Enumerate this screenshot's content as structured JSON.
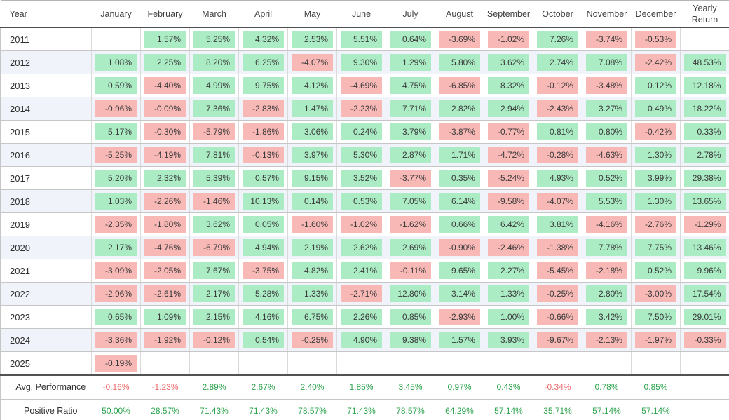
{
  "table": {
    "columns": [
      "Year",
      "January",
      "February",
      "March",
      "April",
      "May",
      "June",
      "July",
      "August",
      "September",
      "October",
      "November",
      "December",
      "Yearly Return"
    ],
    "rows": [
      {
        "year": "2011",
        "cells": [
          "",
          "1.57%",
          "5.25%",
          "4.32%",
          "2.53%",
          "5.51%",
          "0.64%",
          "-3.69%",
          "-1.02%",
          "7.26%",
          "-3.74%",
          "-0.53%",
          ""
        ]
      },
      {
        "year": "2012",
        "cells": [
          "1.08%",
          "2.25%",
          "8.20%",
          "6.25%",
          "-4.07%",
          "9.30%",
          "1.29%",
          "5.80%",
          "3.62%",
          "2.74%",
          "7.08%",
          "-2.42%",
          "48.53%"
        ]
      },
      {
        "year": "2013",
        "cells": [
          "0.59%",
          "-4.40%",
          "4.99%",
          "9.75%",
          "4.12%",
          "-4.69%",
          "4.75%",
          "-6.85%",
          "8.32%",
          "-0.12%",
          "-3.48%",
          "0.12%",
          "12.18%"
        ]
      },
      {
        "year": "2014",
        "cells": [
          "-0.96%",
          "-0.09%",
          "7.36%",
          "-2.83%",
          "1.47%",
          "-2.23%",
          "7.71%",
          "2.82%",
          "2.94%",
          "-2.43%",
          "3.27%",
          "0.49%",
          "18.22%"
        ]
      },
      {
        "year": "2015",
        "cells": [
          "5.17%",
          "-0.30%",
          "-5.79%",
          "-1.86%",
          "3.06%",
          "0.24%",
          "3.79%",
          "-3.87%",
          "-0.77%",
          "0.81%",
          "0.80%",
          "-0.42%",
          "0.33%"
        ]
      },
      {
        "year": "2016",
        "cells": [
          "-5.25%",
          "-4.19%",
          "7.81%",
          "-0.13%",
          "3.97%",
          "5.30%",
          "2.87%",
          "1.71%",
          "-4.72%",
          "-0.28%",
          "-4.63%",
          "1.30%",
          "2.78%"
        ]
      },
      {
        "year": "2017",
        "cells": [
          "5.20%",
          "2.32%",
          "5.39%",
          "0.57%",
          "9.15%",
          "3.52%",
          "-3.77%",
          "0.35%",
          "-5.24%",
          "4.93%",
          "0.52%",
          "3.99%",
          "29.38%"
        ]
      },
      {
        "year": "2018",
        "cells": [
          "1.03%",
          "-2.26%",
          "-1.46%",
          "10.13%",
          "0.14%",
          "0.53%",
          "7.05%",
          "6.14%",
          "-9.58%",
          "-4.07%",
          "5.53%",
          "1.30%",
          "13.65%"
        ]
      },
      {
        "year": "2019",
        "cells": [
          "-2.35%",
          "-1.80%",
          "3.62%",
          "0.05%",
          "-1.60%",
          "-1.02%",
          "-1.62%",
          "0.66%",
          "6.42%",
          "3.81%",
          "-4.16%",
          "-2.76%",
          "-1.29%"
        ]
      },
      {
        "year": "2020",
        "cells": [
          "2.17%",
          "-4.76%",
          "-6.79%",
          "4.94%",
          "2.19%",
          "2.62%",
          "2.69%",
          "-0.90%",
          "-2.46%",
          "-1.38%",
          "7.78%",
          "7.75%",
          "13.46%"
        ]
      },
      {
        "year": "2021",
        "cells": [
          "-3.09%",
          "-2.05%",
          "7.67%",
          "-3.75%",
          "4.82%",
          "2.41%",
          "-0.11%",
          "9.65%",
          "2.27%",
          "-5.45%",
          "-2.18%",
          "0.52%",
          "9.96%"
        ]
      },
      {
        "year": "2022",
        "cells": [
          "-2.96%",
          "-2.61%",
          "2.17%",
          "5.28%",
          "1.33%",
          "-2.71%",
          "12.80%",
          "3.14%",
          "1.33%",
          "-0.25%",
          "2.80%",
          "-3.00%",
          "17.54%"
        ]
      },
      {
        "year": "2023",
        "cells": [
          "0.65%",
          "1.09%",
          "2.15%",
          "4.16%",
          "6.75%",
          "2.26%",
          "0.85%",
          "-2.93%",
          "1.00%",
          "-0.66%",
          "3.42%",
          "7.50%",
          "29.01%"
        ]
      },
      {
        "year": "2024",
        "cells": [
          "-3.36%",
          "-1.92%",
          "-0.12%",
          "0.54%",
          "-0.25%",
          "4.90%",
          "9.38%",
          "1.57%",
          "3.93%",
          "-9.67%",
          "-2.13%",
          "-1.97%",
          "-0.33%"
        ]
      },
      {
        "year": "2025",
        "cells": [
          "-0.19%",
          "",
          "",
          "",
          "",
          "",
          "",
          "",
          "",
          "",
          "",
          "",
          ""
        ]
      }
    ],
    "summary_rows": [
      {
        "label": "Avg. Performance",
        "cells": [
          "-0.16%",
          "-1.23%",
          "2.89%",
          "2.67%",
          "2.40%",
          "1.85%",
          "3.45%",
          "0.97%",
          "0.43%",
          "-0.34%",
          "0.78%",
          "0.85%",
          ""
        ]
      },
      {
        "label": "Positive Ratio",
        "cells": [
          "50.00%",
          "28.57%",
          "71.43%",
          "71.43%",
          "78.57%",
          "71.43%",
          "78.57%",
          "64.29%",
          "57.14%",
          "35.71%",
          "57.14%",
          "57.14%",
          ""
        ]
      }
    ]
  },
  "colors": {
    "positive_bg": "#abecc5",
    "negative_bg": "#f8b9b6",
    "positive_text": "#2da44e",
    "negative_text": "#ef6a6a",
    "stripe_bg": "#f0f4fa"
  }
}
